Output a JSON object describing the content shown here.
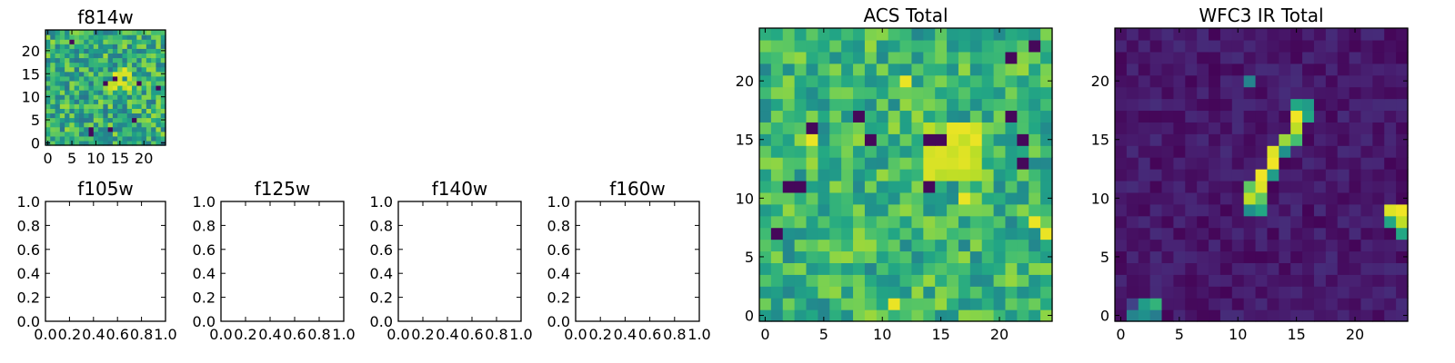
{
  "chart_data": [
    {
      "id": "f814w",
      "type": "heatmap",
      "title": "f814w",
      "colormap": "viridis",
      "grid_size": 25,
      "xlim": [
        -0.5,
        24.5
      ],
      "ylim": [
        -0.5,
        24.5
      ],
      "xticks": [
        0,
        5,
        10,
        15,
        20
      ],
      "yticks": [
        0,
        5,
        10,
        15,
        20
      ],
      "xtick_labels": [
        "0",
        "5",
        "10",
        "15",
        "20"
      ],
      "ytick_labels": [
        "0",
        "5",
        "10",
        "15",
        "20"
      ],
      "value_range": [
        0,
        1
      ],
      "background_level": 0.62,
      "background_spread": 0.24,
      "seed": 17,
      "low_pixels": [
        [
          9,
          2
        ],
        [
          9,
          3
        ],
        [
          12,
          13
        ],
        [
          13,
          3
        ],
        [
          18,
          5
        ],
        [
          19,
          13
        ],
        [
          23,
          12
        ],
        [
          14,
          14
        ],
        [
          5,
          22
        ]
      ],
      "bright_patch": {
        "cols": [
          13,
          17
        ],
        "rows": [
          12,
          16
        ],
        "value": 0.97
      }
    },
    {
      "id": "f105w",
      "type": "empty",
      "title": "f105w",
      "xlim": [
        0,
        1
      ],
      "ylim": [
        0,
        1
      ],
      "xtick_labels": [
        "0.0",
        "0.2",
        "0.4",
        "0.6",
        "0.8",
        "1.0"
      ],
      "ytick_labels": [
        "0.0",
        "0.2",
        "0.4",
        "0.6",
        "0.8",
        "1.0"
      ]
    },
    {
      "id": "f125w",
      "type": "empty",
      "title": "f125w",
      "xlim": [
        0,
        1
      ],
      "ylim": [
        0,
        1
      ],
      "xtick_labels": [
        "0.0",
        "0.2",
        "0.4",
        "0.6",
        "0.8",
        "1.0"
      ],
      "ytick_labels": [
        "0.0",
        "0.2",
        "0.4",
        "0.6",
        "0.8",
        "1.0"
      ]
    },
    {
      "id": "f140w",
      "type": "empty",
      "title": "f140w",
      "xlim": [
        0,
        1
      ],
      "ylim": [
        0,
        1
      ],
      "xtick_labels": [
        "0.0",
        "0.2",
        "0.4",
        "0.6",
        "0.8",
        "1.0"
      ],
      "ytick_labels": [
        "0.0",
        "0.2",
        "0.4",
        "0.6",
        "0.8",
        "1.0"
      ]
    },
    {
      "id": "f160w",
      "type": "empty",
      "title": "f160w",
      "xlim": [
        0,
        1
      ],
      "ylim": [
        0,
        1
      ],
      "xtick_labels": [
        "0.0",
        "0.2",
        "0.4",
        "0.6",
        "0.8",
        "1.0"
      ],
      "ytick_labels": [
        "0.0",
        "0.2",
        "0.4",
        "0.6",
        "0.8",
        "1.0"
      ]
    },
    {
      "id": "acs-total",
      "type": "heatmap",
      "title": "ACS Total",
      "colormap": "viridis",
      "grid_size": 25,
      "xlim": [
        -0.5,
        24.5
      ],
      "ylim": [
        -0.5,
        24.5
      ],
      "xticks": [
        0,
        5,
        10,
        15,
        20
      ],
      "yticks": [
        0,
        5,
        10,
        15,
        20
      ],
      "xtick_labels": [
        "0",
        "5",
        "10",
        "15",
        "20"
      ],
      "ytick_labels": [
        "0",
        "5",
        "10",
        "15",
        "20"
      ],
      "value_range": [
        0,
        1
      ],
      "background_level": 0.65,
      "background_spread": 0.2,
      "seed": 42,
      "low_pixels": [
        [
          3,
          11
        ],
        [
          2,
          11
        ],
        [
          4,
          16
        ],
        [
          9,
          15
        ],
        [
          14,
          15
        ],
        [
          15,
          15
        ],
        [
          22,
          15
        ],
        [
          22,
          13
        ],
        [
          21,
          17
        ],
        [
          23,
          23
        ],
        [
          21,
          22
        ],
        [
          8,
          17
        ],
        [
          14,
          11
        ],
        [
          1,
          7
        ]
      ],
      "bright_patch": {
        "cols": [
          14,
          18
        ],
        "rows": [
          12,
          16
        ],
        "value": 0.97
      },
      "bright_pixels": [
        [
          12,
          20
        ],
        [
          17,
          16
        ],
        [
          18,
          15
        ],
        [
          17,
          10
        ],
        [
          11,
          1
        ],
        [
          24,
          7
        ],
        [
          23,
          8
        ],
        [
          4,
          15
        ]
      ]
    },
    {
      "id": "wfc3-ir-total",
      "type": "heatmap",
      "title": "WFC3 IR Total",
      "colormap": "viridis",
      "grid_size": 25,
      "xlim": [
        -0.5,
        24.5
      ],
      "ylim": [
        -0.5,
        24.5
      ],
      "xticks": [
        0,
        5,
        10,
        15,
        20
      ],
      "yticks": [
        0,
        5,
        10,
        15,
        20
      ],
      "xtick_labels": [
        "0",
        "5",
        "10",
        "15",
        "20"
      ],
      "ytick_labels": [
        "0",
        "5",
        "10",
        "15",
        "20"
      ],
      "value_range": [
        0,
        1
      ],
      "background_level": 0.07,
      "background_spread": 0.06,
      "seed": 7,
      "sources": [
        {
          "x": 11,
          "y": 9,
          "v": 0.5
        },
        {
          "x": 12,
          "y": 9,
          "v": 0.6
        },
        {
          "x": 11,
          "y": 10,
          "v": 0.9
        },
        {
          "x": 12,
          "y": 10,
          "v": 0.75
        },
        {
          "x": 11,
          "y": 11,
          "v": 0.75
        },
        {
          "x": 12,
          "y": 11,
          "v": 0.95
        },
        {
          "x": 12,
          "y": 12,
          "v": 0.98
        },
        {
          "x": 13,
          "y": 12,
          "v": 0.55
        },
        {
          "x": 13,
          "y": 13,
          "v": 0.98
        },
        {
          "x": 13,
          "y": 14,
          "v": 0.95
        },
        {
          "x": 14,
          "y": 14,
          "v": 0.5
        },
        {
          "x": 14,
          "y": 15,
          "v": 0.85
        },
        {
          "x": 15,
          "y": 15,
          "v": 0.7
        },
        {
          "x": 15,
          "y": 16,
          "v": 0.9
        },
        {
          "x": 15,
          "y": 17,
          "v": 0.98
        },
        {
          "x": 16,
          "y": 17,
          "v": 0.6
        },
        {
          "x": 15,
          "y": 18,
          "v": 0.6
        },
        {
          "x": 16,
          "y": 18,
          "v": 0.55
        },
        {
          "x": 11,
          "y": 20,
          "v": 0.45
        },
        {
          "x": 23,
          "y": 9,
          "v": 0.95
        },
        {
          "x": 24,
          "y": 9,
          "v": 0.98
        },
        {
          "x": 23,
          "y": 8,
          "v": 0.6
        },
        {
          "x": 24,
          "y": 8,
          "v": 0.9
        },
        {
          "x": 24,
          "y": 7,
          "v": 0.6
        },
        {
          "x": 1,
          "y": 0,
          "v": 0.45
        },
        {
          "x": 2,
          "y": 0,
          "v": 0.5
        },
        {
          "x": 3,
          "y": 0,
          "v": 0.42
        },
        {
          "x": 2,
          "y": 1,
          "v": 0.55
        },
        {
          "x": 3,
          "y": 1,
          "v": 0.65
        },
        {
          "x": 1,
          "y": 1,
          "v": 0.2
        }
      ]
    }
  ]
}
